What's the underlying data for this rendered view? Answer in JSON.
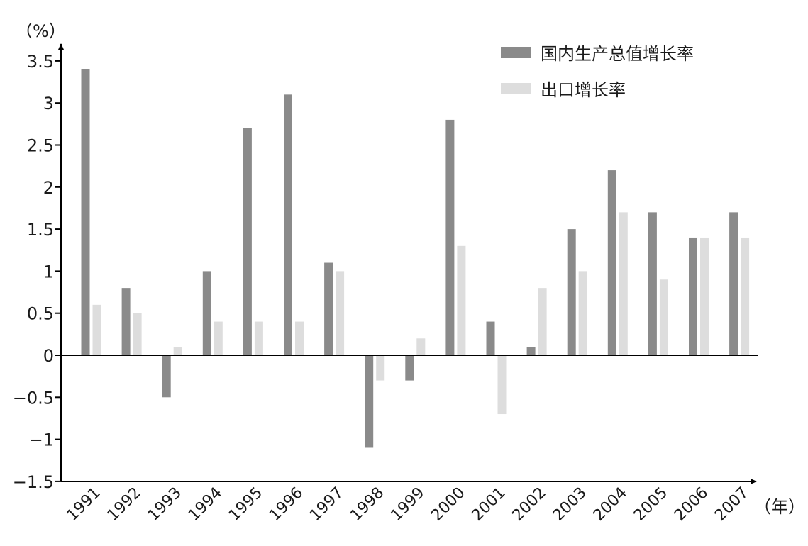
{
  "chart_data": {
    "type": "bar",
    "y_unit_label": "（%）",
    "x_unit_label": "（年）",
    "categories": [
      "1991",
      "1992",
      "1993",
      "1994",
      "1995",
      "1996",
      "1997",
      "1998",
      "1999",
      "2000",
      "2001",
      "2002",
      "2003",
      "2004",
      "2005",
      "2006",
      "2007"
    ],
    "series": [
      {
        "name": "国内生产总值增长率",
        "color": "#8a8a8a",
        "values": [
          3.4,
          0.8,
          -0.5,
          1.0,
          2.7,
          3.1,
          1.1,
          -1.1,
          -0.3,
          2.8,
          0.4,
          0.1,
          1.5,
          2.2,
          1.7,
          1.4,
          1.7
        ]
      },
      {
        "name": "出口增长率",
        "color": "#dddddd",
        "values": [
          0.6,
          0.5,
          0.1,
          0.4,
          0.4,
          0.4,
          1.0,
          -0.3,
          0.2,
          1.3,
          -0.7,
          0.8,
          1.0,
          1.7,
          0.9,
          1.4,
          1.4
        ]
      }
    ],
    "y_ticks": [
      "3.5",
      "3",
      "2.5",
      "2",
      "1.5",
      "1",
      "0.5",
      "0",
      "−0.5",
      "−1",
      "−1.5"
    ],
    "y_tick_values": [
      3.5,
      3,
      2.5,
      2,
      1.5,
      1,
      0.5,
      0,
      -0.5,
      -1,
      -1.5
    ],
    "ylim": [
      -1.5,
      3.5
    ],
    "legend_position": "top-right",
    "grid": false
  }
}
